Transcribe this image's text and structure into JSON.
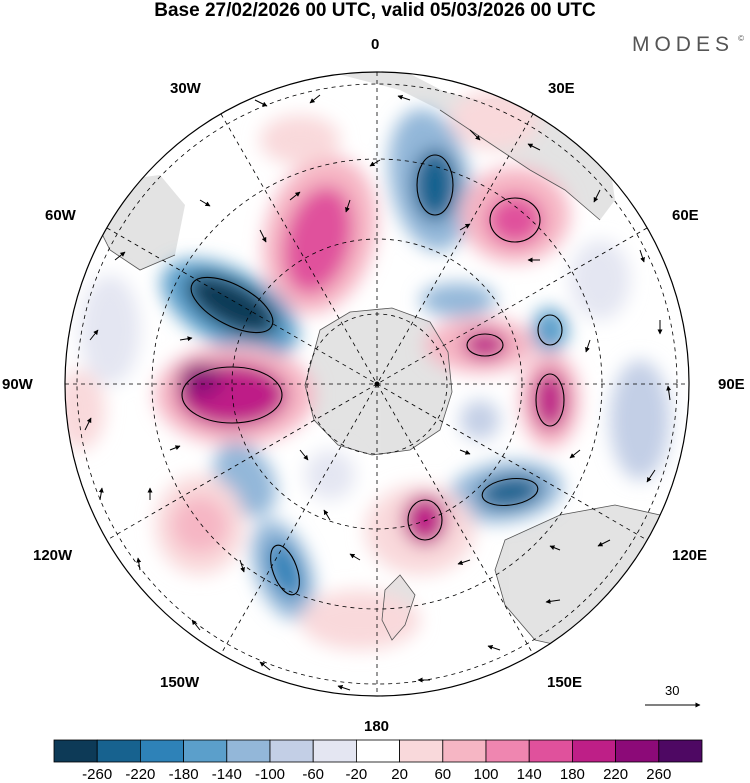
{
  "title": "Base 27/02/2026 00 UTC, valid 05/03/2026 00 UTC",
  "brand": "MODES",
  "brand_mark": "©",
  "longitude_labels": {
    "lon_0": "0",
    "lon_30e": "30E",
    "lon_60e": "60E",
    "lon_90e": "90E",
    "lon_120e": "120E",
    "lon_150e": "150E",
    "lon_180": "180",
    "lon_150w": "150W",
    "lon_120w": "120W",
    "lon_90w": "90W",
    "lon_60w": "60W",
    "lon_30w": "30W"
  },
  "vector_reference": {
    "label": "30"
  },
  "colorbar": {
    "labels": [
      "-260",
      "-220",
      "-180",
      "-140",
      "-100",
      "-60",
      "-20",
      "20",
      "60",
      "100",
      "140",
      "180",
      "220",
      "260"
    ],
    "colors": [
      "#0d3a57",
      "#17628f",
      "#2e82b8",
      "#5b9fcb",
      "#93b7d9",
      "#c3cfe6",
      "#e4e6f2",
      "#ffffff",
      "#f9d9db",
      "#f6b6c4",
      "#ef86b0",
      "#e0519c",
      "#be1f87",
      "#8c0a78",
      "#4e0863"
    ]
  },
  "colors": {
    "land": "#dedede",
    "coast": "#555555"
  }
}
